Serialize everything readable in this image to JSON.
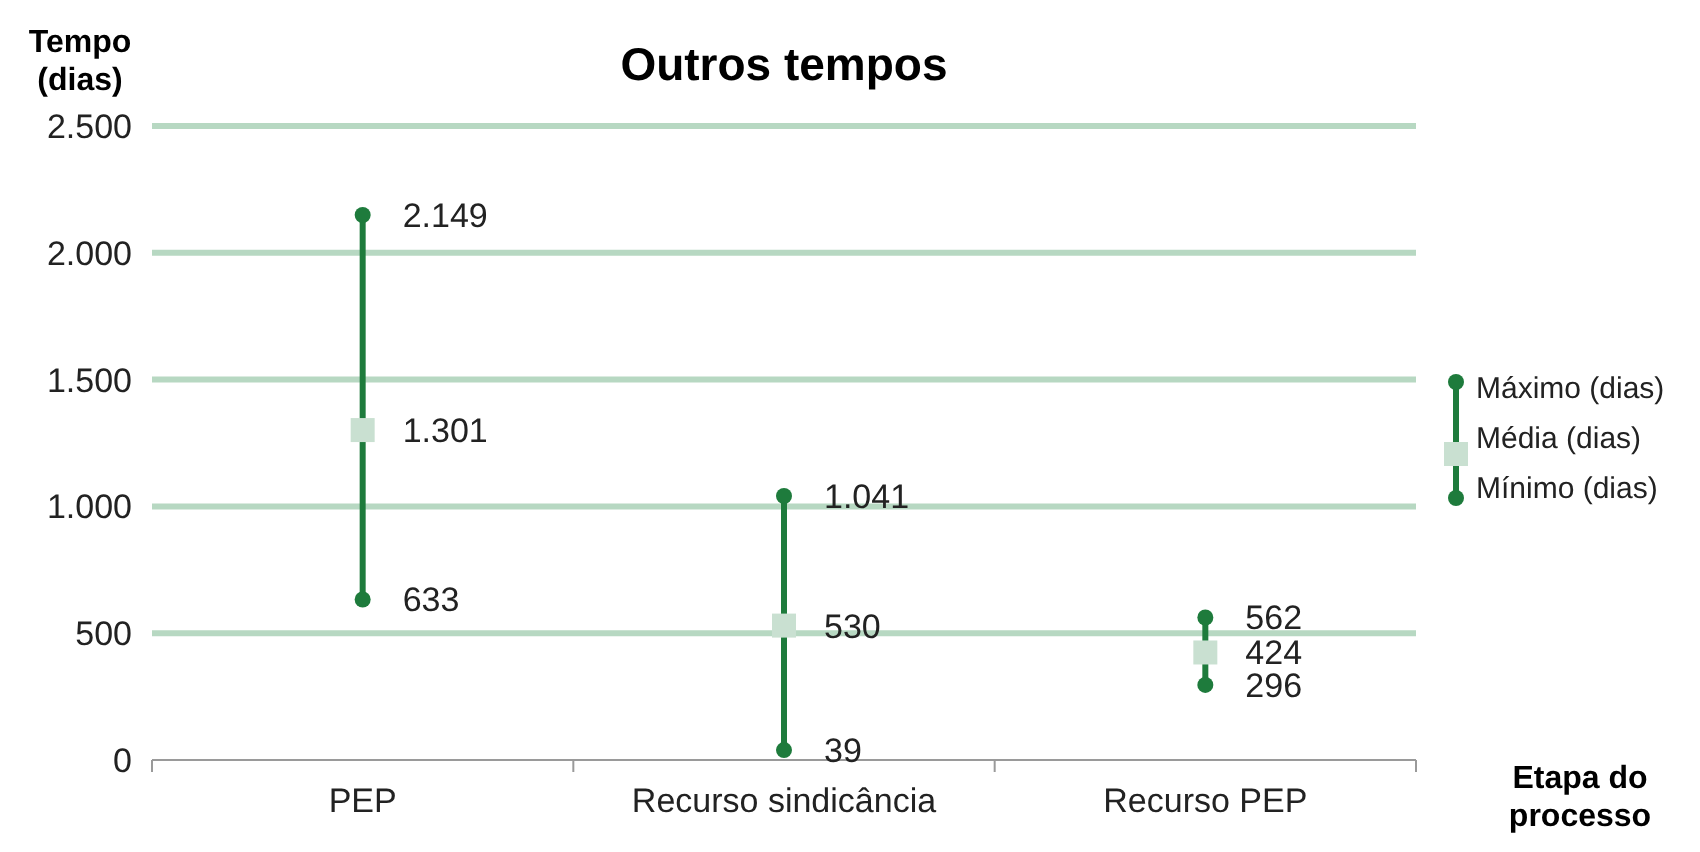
{
  "chart_data": {
    "type": "scatter",
    "title": "Outros tempos",
    "ylabel": "Tempo\n(dias)",
    "xlabel": "Etapa do\nprocesso",
    "categories": [
      "PEP",
      "Recurso sindicância",
      "Recurso PEP"
    ],
    "series": [
      {
        "type": "line",
        "color": "#1e7b3c",
        "x": [
          "PEP",
          "PEP"
        ],
        "values": [
          633,
          2149
        ]
      },
      {
        "type": "line",
        "color": "#1e7b3c",
        "x": [
          "Recurso sindicância",
          "Recurso sindicância"
        ],
        "values": [
          39,
          1041
        ]
      },
      {
        "type": "line",
        "color": "#1e7b3c",
        "x": [
          "Recurso PEP",
          "Recurso PEP"
        ],
        "values": [
          296,
          562
        ]
      },
      {
        "name": "Máximo (dias)",
        "color": "#1e7b3c",
        "marker": "circle",
        "values": [
          2149,
          1041,
          562
        ],
        "value_labels": [
          "2.149",
          "1.041",
          "562"
        ]
      },
      {
        "name": "Média (dias)",
        "color": "#c9e0d1",
        "marker": "square",
        "values": [
          1301,
          530,
          424
        ],
        "value_labels": [
          "1.301",
          "530",
          "424"
        ]
      },
      {
        "name": "Mínimo (dias)",
        "color": "#1e7b3c",
        "marker": "circle",
        "values": [
          633,
          39,
          296
        ],
        "value_labels": [
          "633",
          "39",
          "296"
        ]
      }
    ],
    "ylim": [
      0,
      2500
    ],
    "yticks": [
      0,
      500,
      {
        "value": 1000,
        "label": "1.000"
      },
      {
        "value": 1500,
        "label": "1.500"
      },
      {
        "value": 2000,
        "label": "2.000"
      },
      {
        "value": 2500,
        "label": "2.500"
      }
    ],
    "grid": "y",
    "legend": "right"
  }
}
